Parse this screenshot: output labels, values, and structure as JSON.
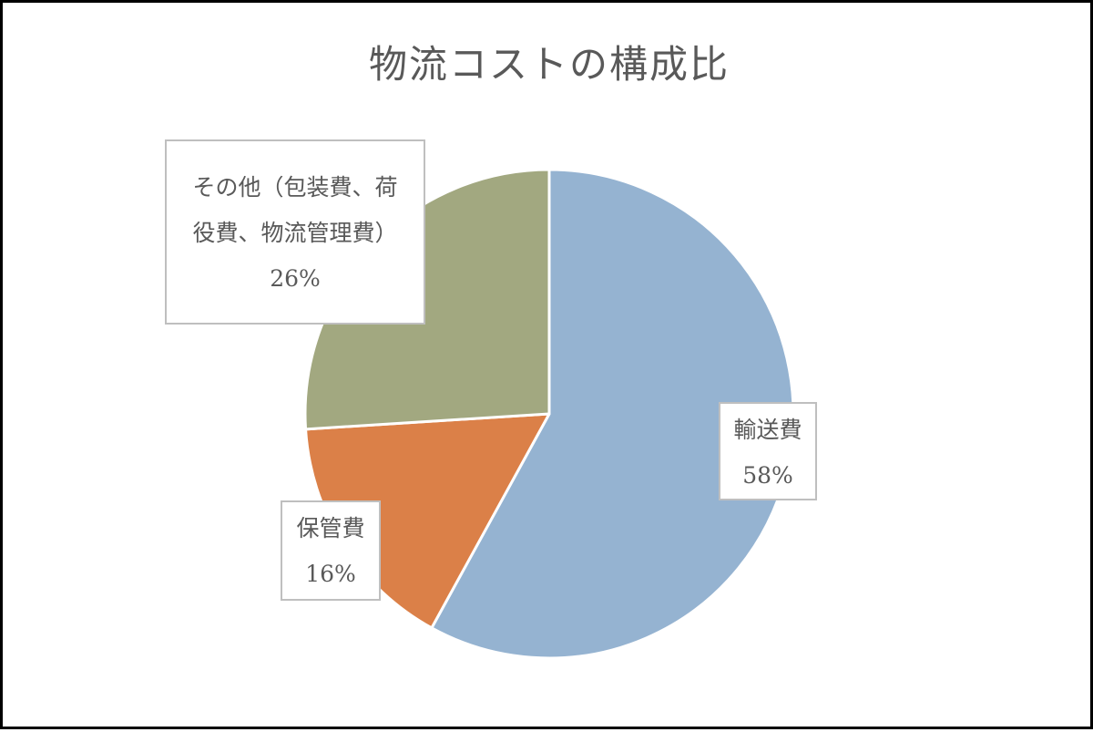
{
  "chart_data": {
    "type": "pie",
    "title": "物流コストの構成比",
    "categories": [
      "輸送費",
      "保管費",
      "その他（包装費、荷役費、物流管理費）"
    ],
    "values": [
      58,
      16,
      26
    ],
    "unit": "%",
    "colors": [
      "#95b3d1",
      "#db8048",
      "#a2a880"
    ],
    "start_angle_deg": 0,
    "direction": "clockwise",
    "legend": "none",
    "labels": {
      "transport": {
        "name": "輸送費",
        "percent": "58%"
      },
      "storage": {
        "name": "保管費",
        "percent": "16%"
      },
      "other": {
        "name_line1": "その他（包装費、荷",
        "name_line2": "役費、物流管理費）",
        "percent": "26%"
      }
    }
  }
}
